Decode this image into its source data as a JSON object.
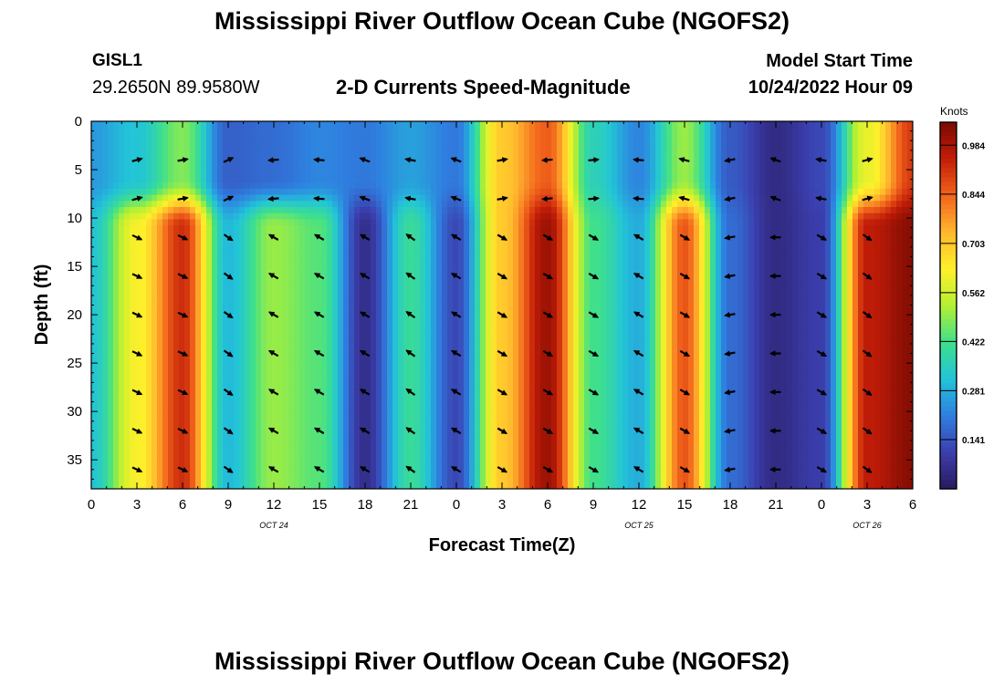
{
  "header": {
    "title": "Mississippi River Outflow Ocean Cube (NGOFS2)",
    "station": "GISL1",
    "coordinates": "29.2650N  89.9580W",
    "subtitle": "2-D Currents Speed-Magnitude",
    "model_start_label": "Model Start Time",
    "model_start_value": "10/24/2022 Hour 09"
  },
  "footer": {
    "title": "Mississippi River Outflow Ocean Cube (NGOFS2)"
  },
  "colors": {
    "colormap": [
      "#2a1a5e",
      "#3b3fae",
      "#2f7fe0",
      "#22c4d8",
      "#3fe08a",
      "#b4f032",
      "#fff02a",
      "#ffb62e",
      "#f2641c",
      "#c21d08",
      "#7a0a02"
    ],
    "arrow": "#000000"
  },
  "chart_data": {
    "type": "heatmap",
    "xlabel": "Forecast Time(Z)",
    "ylabel": "Depth (ft)",
    "x_range_hours": [
      0,
      54
    ],
    "x_tick_labels": [
      "0",
      "3",
      "6",
      "9",
      "12",
      "15",
      "18",
      "21",
      "0",
      "3",
      "6",
      "9",
      "12",
      "15",
      "18",
      "21",
      "0",
      "3",
      "6"
    ],
    "date_labels": [
      {
        "label": "OCT 24",
        "hour": 12
      },
      {
        "label": "OCT 25",
        "hour": 36
      },
      {
        "label": "OCT 26",
        "hour": 51
      }
    ],
    "y_range_ft": [
      0,
      38
    ],
    "y_ticks": [
      0,
      5,
      10,
      15,
      20,
      25,
      30,
      35
    ],
    "y_reversed": true,
    "colorbar": {
      "title": "Knots",
      "range": [
        0.0,
        1.05
      ],
      "ticks": [
        0.141,
        0.281,
        0.422,
        0.562,
        0.703,
        0.844,
        0.984
      ],
      "tick_labels": [
        "0.141",
        "0.281",
        "0.422",
        "0.562",
        "0.703",
        "0.844",
        "0.984"
      ]
    },
    "lower_layer": {
      "hours": [
        0,
        3,
        6,
        9,
        12,
        15,
        18,
        21,
        24,
        27,
        30,
        33,
        36,
        39,
        42,
        45,
        48,
        51,
        54
      ],
      "speeds": [
        0.32,
        0.62,
        0.92,
        0.3,
        0.5,
        0.44,
        0.06,
        0.4,
        0.12,
        0.7,
        1.0,
        0.42,
        0.28,
        0.86,
        0.18,
        0.05,
        0.1,
        0.95,
        1.03
      ]
    },
    "upper_layer": {
      "hours": [
        0,
        3,
        6,
        9,
        12,
        15,
        18,
        21,
        24,
        27,
        30,
        33,
        36,
        39,
        42,
        45,
        48,
        51,
        54
      ],
      "speeds": [
        0.25,
        0.32,
        0.48,
        0.16,
        0.18,
        0.22,
        0.2,
        0.26,
        0.2,
        0.7,
        0.85,
        0.36,
        0.22,
        0.5,
        0.15,
        0.05,
        0.12,
        0.6,
        0.9
      ]
    },
    "vector_grid": {
      "hours": [
        3,
        6,
        9,
        12,
        15,
        18,
        21,
        24,
        27,
        30,
        33,
        36,
        39,
        42,
        45,
        48,
        51
      ],
      "depths_ft": [
        4,
        8,
        12,
        16,
        20,
        24,
        28,
        32,
        36
      ],
      "surface_direction_deg": [
        15,
        10,
        25,
        185,
        175,
        160,
        170,
        160,
        10,
        185,
        5,
        175,
        165,
        190,
        160,
        170,
        15
      ],
      "subsurface_direction_deg": [
        -25,
        -25,
        -35,
        150,
        150,
        150,
        145,
        150,
        -30,
        -30,
        -30,
        150,
        -30,
        190,
        180,
        -30,
        -35
      ]
    }
  }
}
